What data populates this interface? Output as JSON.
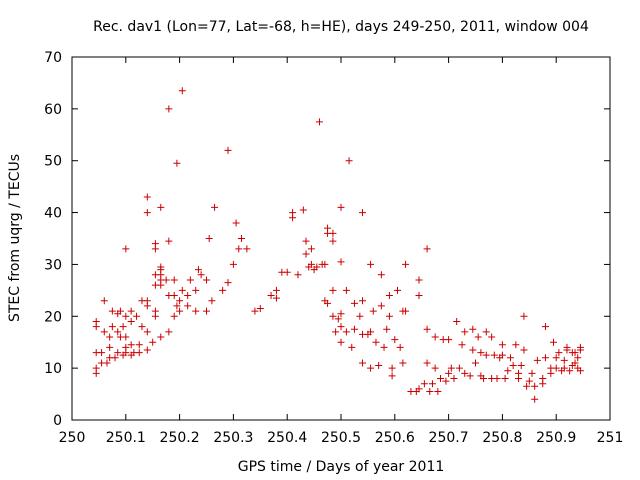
{
  "chart_data": {
    "type": "scatter",
    "title": "Rec. dav1 (Lon=77, Lat=-68, h=HE), days 249-250, 2011, window 004",
    "xlabel": "GPS time / Days of year 2011",
    "ylabel": "STEC from uqrg / TECUs",
    "xlim": [
      250,
      251
    ],
    "ylim": [
      0,
      70
    ],
    "x_ticks": [
      "250",
      "250.1",
      "250.2",
      "250.3",
      "250.4",
      "250.5",
      "250.6",
      "250.7",
      "250.8",
      "250.9",
      "251"
    ],
    "y_ticks": [
      "0",
      "10",
      "20",
      "30",
      "40",
      "50",
      "60",
      "70"
    ],
    "grid": false,
    "legend": "none",
    "marker": "+",
    "color": "#cc0000",
    "points": [
      [
        250.045,
        9
      ],
      [
        250.045,
        10
      ],
      [
        250.045,
        13
      ],
      [
        250.045,
        18
      ],
      [
        250.045,
        19
      ],
      [
        250.055,
        11
      ],
      [
        250.055,
        13
      ],
      [
        250.06,
        17
      ],
      [
        250.06,
        23
      ],
      [
        250.065,
        11
      ],
      [
        250.07,
        12
      ],
      [
        250.07,
        14
      ],
      [
        250.07,
        16
      ],
      [
        250.075,
        21
      ],
      [
        250.075,
        18
      ],
      [
        250.08,
        12
      ],
      [
        250.085,
        13
      ],
      [
        250.085,
        17
      ],
      [
        250.085,
        20.5
      ],
      [
        250.09,
        16
      ],
      [
        250.09,
        21
      ],
      [
        250.095,
        12.5
      ],
      [
        250.095,
        18
      ],
      [
        250.1,
        13
      ],
      [
        250.1,
        14
      ],
      [
        250.1,
        16
      ],
      [
        250.1,
        20
      ],
      [
        250.1,
        33
      ],
      [
        250.11,
        12.5
      ],
      [
        250.11,
        14.5
      ],
      [
        250.11,
        19
      ],
      [
        250.11,
        21
      ],
      [
        250.115,
        13
      ],
      [
        250.12,
        20
      ],
      [
        250.125,
        13
      ],
      [
        250.125,
        14.5
      ],
      [
        250.13,
        18
      ],
      [
        250.13,
        23
      ],
      [
        250.14,
        13.5
      ],
      [
        250.14,
        17
      ],
      [
        250.14,
        22
      ],
      [
        250.14,
        23
      ],
      [
        250.14,
        40
      ],
      [
        250.14,
        43
      ],
      [
        250.15,
        15
      ],
      [
        250.155,
        20
      ],
      [
        250.155,
        21
      ],
      [
        250.155,
        26
      ],
      [
        250.155,
        28
      ],
      [
        250.155,
        33
      ],
      [
        250.155,
        34
      ],
      [
        250.165,
        16
      ],
      [
        250.165,
        26
      ],
      [
        250.165,
        27
      ],
      [
        250.165,
        28
      ],
      [
        250.165,
        29
      ],
      [
        250.165,
        29.5
      ],
      [
        250.165,
        41
      ],
      [
        250.175,
        27
      ],
      [
        250.18,
        17
      ],
      [
        250.18,
        24
      ],
      [
        250.18,
        34.5
      ],
      [
        250.18,
        60
      ],
      [
        250.19,
        20
      ],
      [
        250.19,
        24
      ],
      [
        250.19,
        27
      ],
      [
        250.195,
        22
      ],
      [
        250.195,
        49.5
      ],
      [
        250.2,
        21
      ],
      [
        250.2,
        23
      ],
      [
        250.205,
        25
      ],
      [
        250.205,
        63.5
      ],
      [
        250.215,
        22
      ],
      [
        250.215,
        24
      ],
      [
        250.22,
        27
      ],
      [
        250.23,
        21
      ],
      [
        250.23,
        25
      ],
      [
        250.235,
        29
      ],
      [
        250.24,
        28
      ],
      [
        250.25,
        21
      ],
      [
        250.25,
        27
      ],
      [
        250.255,
        35
      ],
      [
        250.26,
        23
      ],
      [
        250.265,
        41
      ],
      [
        250.28,
        25
      ],
      [
        250.29,
        26.5
      ],
      [
        250.29,
        52
      ],
      [
        250.3,
        30
      ],
      [
        250.305,
        38
      ],
      [
        250.31,
        33
      ],
      [
        250.315,
        35
      ],
      [
        250.325,
        33
      ],
      [
        250.34,
        21
      ],
      [
        250.35,
        21.5
      ],
      [
        250.37,
        24
      ],
      [
        250.38,
        23.5
      ],
      [
        250.38,
        25
      ],
      [
        250.39,
        28.5
      ],
      [
        250.4,
        28.5
      ],
      [
        250.41,
        39
      ],
      [
        250.41,
        40
      ],
      [
        250.42,
        28
      ],
      [
        250.43,
        40.5
      ],
      [
        250.435,
        32
      ],
      [
        250.435,
        34.5
      ],
      [
        250.44,
        29.5
      ],
      [
        250.445,
        30
      ],
      [
        250.445,
        33
      ],
      [
        250.45,
        29
      ],
      [
        250.455,
        29.5
      ],
      [
        250.46,
        57.5
      ],
      [
        250.465,
        30
      ],
      [
        250.47,
        23
      ],
      [
        250.47,
        30
      ],
      [
        250.475,
        22.5
      ],
      [
        250.475,
        36
      ],
      [
        250.475,
        37
      ],
      [
        250.485,
        20
      ],
      [
        250.485,
        25
      ],
      [
        250.485,
        34.5
      ],
      [
        250.485,
        36
      ],
      [
        250.49,
        17
      ],
      [
        250.495,
        19.5
      ],
      [
        250.5,
        15
      ],
      [
        250.5,
        18
      ],
      [
        250.5,
        20.5
      ],
      [
        250.5,
        30.5
      ],
      [
        250.5,
        41
      ],
      [
        250.51,
        17
      ],
      [
        250.51,
        25
      ],
      [
        250.515,
        50
      ],
      [
        250.52,
        14
      ],
      [
        250.525,
        17.5
      ],
      [
        250.525,
        22.5
      ],
      [
        250.535,
        20
      ],
      [
        250.54,
        11
      ],
      [
        250.54,
        16.5
      ],
      [
        250.54,
        23
      ],
      [
        250.54,
        40
      ],
      [
        250.55,
        16.5
      ],
      [
        250.555,
        10
      ],
      [
        250.555,
        17
      ],
      [
        250.555,
        30
      ],
      [
        250.56,
        21
      ],
      [
        250.565,
        15
      ],
      [
        250.57,
        10.5
      ],
      [
        250.575,
        22
      ],
      [
        250.575,
        28
      ],
      [
        250.58,
        14
      ],
      [
        250.585,
        17.5
      ],
      [
        250.59,
        20
      ],
      [
        250.59,
        24
      ],
      [
        250.595,
        8.5
      ],
      [
        250.595,
        10
      ],
      [
        250.6,
        15.5
      ],
      [
        250.605,
        25
      ],
      [
        250.61,
        14
      ],
      [
        250.615,
        11
      ],
      [
        250.615,
        21
      ],
      [
        250.62,
        21
      ],
      [
        250.62,
        30
      ],
      [
        250.63,
        5.5
      ],
      [
        250.64,
        5.5
      ],
      [
        250.645,
        24
      ],
      [
        250.645,
        27
      ],
      [
        250.645,
        6
      ],
      [
        250.655,
        7
      ],
      [
        250.66,
        11
      ],
      [
        250.66,
        17.5
      ],
      [
        250.66,
        33
      ],
      [
        250.665,
        5.5
      ],
      [
        250.67,
        7
      ],
      [
        250.675,
        10
      ],
      [
        250.675,
        16
      ],
      [
        250.68,
        5.5
      ],
      [
        250.685,
        8
      ],
      [
        250.69,
        15.5
      ],
      [
        250.695,
        7.5
      ],
      [
        250.7,
        9
      ],
      [
        250.7,
        15.5
      ],
      [
        250.705,
        10
      ],
      [
        250.71,
        8
      ],
      [
        250.715,
        19
      ],
      [
        250.72,
        10
      ],
      [
        250.725,
        14.5
      ],
      [
        250.73,
        9
      ],
      [
        250.73,
        17
      ],
      [
        250.74,
        8.5
      ],
      [
        250.745,
        13.5
      ],
      [
        250.745,
        17.5
      ],
      [
        250.75,
        11
      ],
      [
        250.755,
        16
      ],
      [
        250.76,
        8.5
      ],
      [
        250.76,
        13
      ],
      [
        250.765,
        8
      ],
      [
        250.77,
        12.5
      ],
      [
        250.77,
        17
      ],
      [
        250.78,
        8
      ],
      [
        250.78,
        16
      ],
      [
        250.785,
        12.5
      ],
      [
        250.79,
        8
      ],
      [
        250.795,
        12
      ],
      [
        250.8,
        12.5
      ],
      [
        250.8,
        14.5
      ],
      [
        250.805,
        8
      ],
      [
        250.81,
        9.5
      ],
      [
        250.815,
        12
      ],
      [
        250.82,
        10.5
      ],
      [
        250.825,
        14.5
      ],
      [
        250.83,
        8
      ],
      [
        250.83,
        9
      ],
      [
        250.835,
        10.5
      ],
      [
        250.84,
        13.5
      ],
      [
        250.84,
        20
      ],
      [
        250.845,
        6.5
      ],
      [
        250.85,
        7.5
      ],
      [
        250.855,
        9
      ],
      [
        250.86,
        4
      ],
      [
        250.86,
        6.5
      ],
      [
        250.865,
        11.5
      ],
      [
        250.875,
        7
      ],
      [
        250.875,
        8
      ],
      [
        250.88,
        12
      ],
      [
        250.88,
        18
      ],
      [
        250.89,
        9
      ],
      [
        250.89,
        10
      ],
      [
        250.895,
        15
      ],
      [
        250.9,
        10
      ],
      [
        250.9,
        12
      ],
      [
        250.905,
        13
      ],
      [
        250.91,
        9.5
      ],
      [
        250.915,
        10
      ],
      [
        250.915,
        11.5
      ],
      [
        250.92,
        13.5
      ],
      [
        250.92,
        14
      ],
      [
        250.925,
        9.5
      ],
      [
        250.93,
        10.5
      ],
      [
        250.93,
        13
      ],
      [
        250.935,
        11
      ],
      [
        250.935,
        13
      ],
      [
        250.94,
        10
      ],
      [
        250.94,
        12
      ],
      [
        250.945,
        9.5
      ],
      [
        250.945,
        13.5
      ],
      [
        250.945,
        14
      ]
    ]
  }
}
